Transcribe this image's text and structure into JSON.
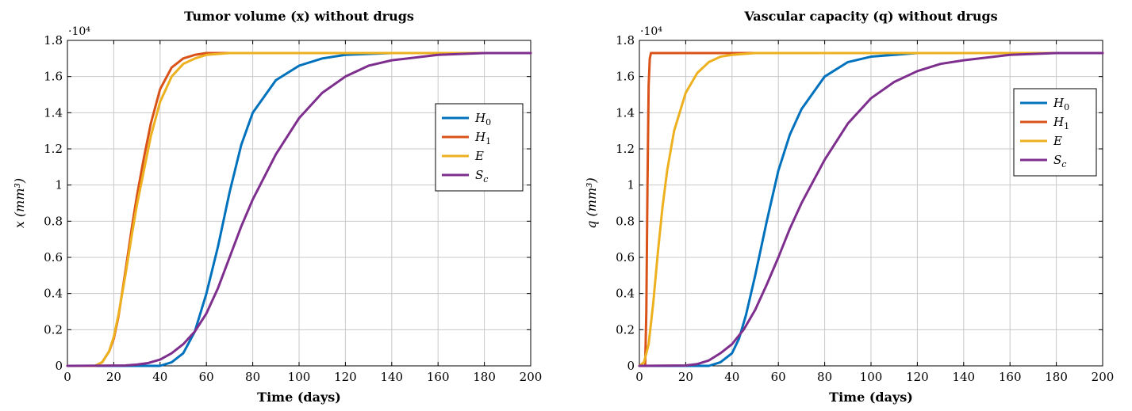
{
  "chart_data": [
    {
      "type": "line",
      "title": "Tumor volume (x) without drugs",
      "xlabel": "Time (days)",
      "ylabel": "x (mm³)",
      "y_multiplier": "·10⁴",
      "xlim": [
        0,
        200
      ],
      "ylim": [
        0,
        1.8
      ],
      "xticks": [
        0,
        20,
        40,
        60,
        80,
        100,
        120,
        140,
        160,
        180,
        200
      ],
      "yticks": [
        0,
        0.2,
        0.4,
        0.6,
        0.8,
        1,
        1.2,
        1.4,
        1.6,
        1.8
      ],
      "grid": true,
      "legend_position": "upper-right",
      "series": [
        {
          "name": "H0",
          "sub": "0",
          "base": "H",
          "color": "#0072BD",
          "x": [
            0,
            40,
            45,
            50,
            55,
            60,
            65,
            70,
            75,
            80,
            90,
            100,
            110,
            120,
            140,
            160,
            200
          ],
          "y": [
            0,
            0,
            0.02,
            0.07,
            0.19,
            0.4,
            0.66,
            0.96,
            1.22,
            1.4,
            1.58,
            1.66,
            1.7,
            1.72,
            1.73,
            1.73,
            1.73
          ]
        },
        {
          "name": "H1",
          "sub": "1",
          "base": "H",
          "color": "#D95319",
          "x": [
            0,
            12,
            15,
            18,
            20,
            22,
            25,
            28,
            30,
            33,
            36,
            40,
            45,
            50,
            55,
            60,
            70,
            80,
            200
          ],
          "y": [
            0,
            0,
            0.02,
            0.08,
            0.15,
            0.27,
            0.52,
            0.78,
            0.94,
            1.15,
            1.34,
            1.53,
            1.65,
            1.7,
            1.72,
            1.73,
            1.73,
            1.73,
            1.73
          ]
        },
        {
          "name": "E",
          "sub": "",
          "base": "E",
          "color": "#EDB120",
          "x": [
            0,
            12,
            15,
            18,
            20,
            22,
            25,
            28,
            30,
            33,
            36,
            40,
            45,
            50,
            55,
            60,
            70,
            80,
            90,
            200
          ],
          "y": [
            0,
            0,
            0.02,
            0.08,
            0.16,
            0.28,
            0.5,
            0.74,
            0.89,
            1.08,
            1.27,
            1.46,
            1.6,
            1.67,
            1.7,
            1.72,
            1.73,
            1.73,
            1.73,
            1.73
          ]
        },
        {
          "name": "Sc",
          "sub": "c",
          "base": "S",
          "color": "#7E2F8E",
          "x": [
            0,
            25,
            30,
            35,
            40,
            45,
            50,
            55,
            60,
            65,
            70,
            75,
            80,
            90,
            100,
            110,
            120,
            130,
            140,
            160,
            180,
            200
          ],
          "y": [
            0,
            0.002,
            0.007,
            0.016,
            0.035,
            0.07,
            0.12,
            0.19,
            0.29,
            0.43,
            0.6,
            0.77,
            0.92,
            1.17,
            1.37,
            1.51,
            1.6,
            1.66,
            1.69,
            1.72,
            1.73,
            1.73
          ]
        }
      ]
    },
    {
      "type": "line",
      "title": "Vascular capacity (q) without drugs",
      "xlabel": "Time (days)",
      "ylabel": "q (mm³)",
      "y_multiplier": "·10⁴",
      "xlim": [
        0,
        200
      ],
      "ylim": [
        0,
        1.8
      ],
      "xticks": [
        0,
        20,
        40,
        60,
        80,
        100,
        120,
        140,
        160,
        180,
        200
      ],
      "yticks": [
        0,
        0.2,
        0.4,
        0.6,
        0.8,
        1,
        1.2,
        1.4,
        1.6,
        1.8
      ],
      "grid": true,
      "legend_position": "upper-right",
      "series": [
        {
          "name": "H0",
          "sub": "0",
          "base": "H",
          "color": "#0072BD",
          "x": [
            0,
            30,
            35,
            40,
            43,
            46,
            50,
            55,
            60,
            65,
            70,
            80,
            90,
            100,
            110,
            120,
            140,
            200
          ],
          "y": [
            0,
            0,
            0.02,
            0.07,
            0.15,
            0.28,
            0.5,
            0.8,
            1.08,
            1.28,
            1.42,
            1.6,
            1.68,
            1.71,
            1.72,
            1.73,
            1.73,
            1.73
          ]
        },
        {
          "name": "H1",
          "sub": "1",
          "base": "H",
          "color": "#D95319",
          "x": [
            0,
            2.5,
            3,
            3.5,
            4,
            4.5,
            5,
            6,
            200
          ],
          "y": [
            0,
            0,
            0.3,
            1.0,
            1.55,
            1.7,
            1.73,
            1.73,
            1.73
          ]
        },
        {
          "name": "E",
          "sub": "",
          "base": "E",
          "color": "#EDB120",
          "x": [
            0,
            2,
            4,
            6,
            8,
            10,
            12,
            15,
            20,
            25,
            30,
            35,
            40,
            50,
            60,
            200
          ],
          "y": [
            0,
            0.02,
            0.12,
            0.35,
            0.63,
            0.88,
            1.08,
            1.3,
            1.51,
            1.62,
            1.68,
            1.71,
            1.72,
            1.73,
            1.73,
            1.73
          ]
        },
        {
          "name": "Sc",
          "sub": "c",
          "base": "S",
          "color": "#7E2F8E",
          "x": [
            0,
            20,
            25,
            30,
            35,
            40,
            45,
            50,
            55,
            60,
            65,
            70,
            80,
            90,
            100,
            110,
            120,
            130,
            140,
            160,
            180,
            200
          ],
          "y": [
            0,
            0.002,
            0.01,
            0.03,
            0.07,
            0.12,
            0.2,
            0.31,
            0.45,
            0.6,
            0.76,
            0.9,
            1.14,
            1.34,
            1.48,
            1.57,
            1.63,
            1.67,
            1.69,
            1.72,
            1.73,
            1.73
          ]
        }
      ]
    }
  ]
}
